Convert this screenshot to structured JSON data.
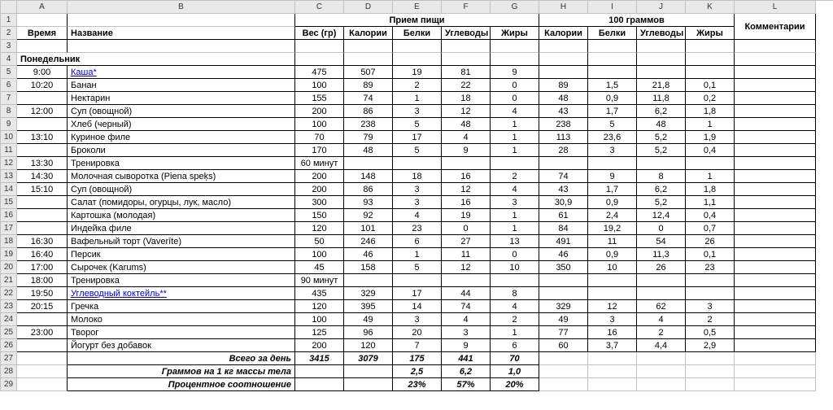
{
  "columns": [
    "A",
    "B",
    "C",
    "D",
    "E",
    "F",
    "G",
    "H",
    "I",
    "J",
    "K",
    "L"
  ],
  "header_meal": "Прием пищи",
  "header_100g": "100 граммов",
  "header_comments": "Комментарии",
  "h": {
    "time": "Время",
    "name": "Название",
    "weight": "Вес (гр)",
    "cal": "Калории",
    "prot": "Белки",
    "carb": "Углеводы",
    "fat": "Жиры"
  },
  "day": "Понедельник",
  "rows": [
    {
      "n": 5,
      "t": "9:00",
      "name": "Каша*",
      "link": true,
      "w": "475",
      "c": "507",
      "p": "19",
      "cb": "81",
      "f": "9",
      "c2": "",
      "p2": "",
      "cb2": "",
      "f2": ""
    },
    {
      "n": 6,
      "t": "10:20",
      "name": "Банан",
      "w": "100",
      "c": "89",
      "p": "2",
      "cb": "22",
      "f": "0",
      "c2": "89",
      "p2": "1,5",
      "cb2": "21,8",
      "f2": "0,1"
    },
    {
      "n": 7,
      "t": "",
      "name": "Нектарин",
      "w": "155",
      "c": "74",
      "p": "1",
      "cb": "18",
      "f": "0",
      "c2": "48",
      "p2": "0,9",
      "cb2": "11,8",
      "f2": "0,2"
    },
    {
      "n": 8,
      "t": "12:00",
      "name": "Суп (овощной)",
      "w": "200",
      "c": "86",
      "p": "3",
      "cb": "12",
      "f": "4",
      "c2": "43",
      "p2": "1,7",
      "cb2": "6,2",
      "f2": "1,8"
    },
    {
      "n": 9,
      "t": "",
      "name": "Хлеб (черный)",
      "w": "100",
      "c": "238",
      "p": "5",
      "cb": "48",
      "f": "1",
      "c2": "238",
      "p2": "5",
      "cb2": "48",
      "f2": "1"
    },
    {
      "n": 10,
      "t": "13:10",
      "name": "Куриное филе",
      "w": "70",
      "c": "79",
      "p": "17",
      "cb": "4",
      "f": "1",
      "c2": "113",
      "p2": "23,6",
      "cb2": "5,2",
      "f2": "1,9"
    },
    {
      "n": 11,
      "t": "",
      "name": "Броколи",
      "w": "170",
      "c": "48",
      "p": "5",
      "cb": "9",
      "f": "1",
      "c2": "28",
      "p2": "3",
      "cb2": "5,2",
      "f2": "0,4"
    },
    {
      "n": 12,
      "t": "13:30",
      "name": "Тренировка",
      "w": "60 минут",
      "c": "",
      "p": "",
      "cb": "",
      "f": "",
      "c2": "",
      "p2": "",
      "cb2": "",
      "f2": ""
    },
    {
      "n": 13,
      "t": "14:30",
      "name": "Молочная сыворотка (Piena speķs)",
      "w": "200",
      "c": "148",
      "p": "18",
      "cb": "16",
      "f": "2",
      "c2": "74",
      "p2": "9",
      "cb2": "8",
      "f2": "1"
    },
    {
      "n": 14,
      "t": "15:10",
      "name": "Суп (овощной)",
      "w": "200",
      "c": "86",
      "p": "3",
      "cb": "12",
      "f": "4",
      "c2": "43",
      "p2": "1,7",
      "cb2": "6,2",
      "f2": "1,8"
    },
    {
      "n": 15,
      "t": "",
      "name": "Салат (помидоры, огурцы, лук, масло)",
      "w": "300",
      "c": "93",
      "p": "3",
      "cb": "16",
      "f": "3",
      "c2": "30,9",
      "p2": "0,9",
      "cb2": "5,2",
      "f2": "1,1"
    },
    {
      "n": 16,
      "t": "",
      "name": "Картошка (молодая)",
      "w": "150",
      "c": "92",
      "p": "4",
      "cb": "19",
      "f": "1",
      "c2": "61",
      "p2": "2,4",
      "cb2": "12,4",
      "f2": "0,4"
    },
    {
      "n": 17,
      "t": "",
      "name": "Индейка филе",
      "w": "120",
      "c": "101",
      "p": "23",
      "cb": "0",
      "f": "1",
      "c2": "84",
      "p2": "19,2",
      "cb2": "0",
      "f2": "0,7"
    },
    {
      "n": 18,
      "t": "16:30",
      "name": "Вафельный торт (Vaverīte)",
      "w": "50",
      "c": "246",
      "p": "6",
      "cb": "27",
      "f": "13",
      "c2": "491",
      "p2": "11",
      "cb2": "54",
      "f2": "26"
    },
    {
      "n": 19,
      "t": "16:40",
      "name": "Персик",
      "w": "100",
      "c": "46",
      "p": "1",
      "cb": "11",
      "f": "0",
      "c2": "46",
      "p2": "0,9",
      "cb2": "11,3",
      "f2": "0,1"
    },
    {
      "n": 20,
      "t": "17:00",
      "name": "Сырочек (Karums)",
      "w": "45",
      "c": "158",
      "p": "5",
      "cb": "12",
      "f": "10",
      "c2": "350",
      "p2": "10",
      "cb2": "26",
      "f2": "23"
    },
    {
      "n": 21,
      "t": "18:00",
      "name": "Тренировка",
      "w": "90 минут",
      "c": "",
      "p": "",
      "cb": "",
      "f": "",
      "c2": "",
      "p2": "",
      "cb2": "",
      "f2": ""
    },
    {
      "n": 22,
      "t": "19:50",
      "name": "Углеводный коктейль**",
      "link": true,
      "w": "435",
      "c": "329",
      "p": "17",
      "cb": "44",
      "f": "8",
      "c2": "",
      "p2": "",
      "cb2": "",
      "f2": ""
    },
    {
      "n": 23,
      "t": "20:15",
      "name": "Гречка",
      "w": "120",
      "c": "395",
      "p": "14",
      "cb": "74",
      "f": "4",
      "c2": "329",
      "p2": "12",
      "cb2": "62",
      "f2": "3"
    },
    {
      "n": 24,
      "t": "",
      "name": "Молоко",
      "w": "100",
      "c": "49",
      "p": "3",
      "cb": "4",
      "f": "2",
      "c2": "49",
      "p2": "3",
      "cb2": "4",
      "f2": "2"
    },
    {
      "n": 25,
      "t": "23:00",
      "name": "Творог",
      "w": "125",
      "c": "96",
      "p": "20",
      "cb": "3",
      "f": "1",
      "c2": "77",
      "p2": "16",
      "cb2": "2",
      "f2": "0,5"
    },
    {
      "n": 26,
      "t": "",
      "name": "Йогурт без добавок",
      "w": "200",
      "c": "120",
      "p": "7",
      "cb": "9",
      "f": "6",
      "c2": "60",
      "p2": "3,7",
      "cb2": "4,4",
      "f2": "2,9"
    }
  ],
  "totals": [
    {
      "n": 27,
      "label": "Всего за день",
      "w": "3415",
      "c": "3079",
      "p": "175",
      "cb": "441",
      "f": "70"
    },
    {
      "n": 28,
      "label": "Граммов на 1 кг массы тела",
      "w": "",
      "c": "",
      "p": "2,5",
      "cb": "6,2",
      "f": "1,0"
    },
    {
      "n": 29,
      "label": "Процентное соотношение",
      "w": "",
      "c": "",
      "p": "23%",
      "cb": "57%",
      "f": "20%"
    }
  ]
}
